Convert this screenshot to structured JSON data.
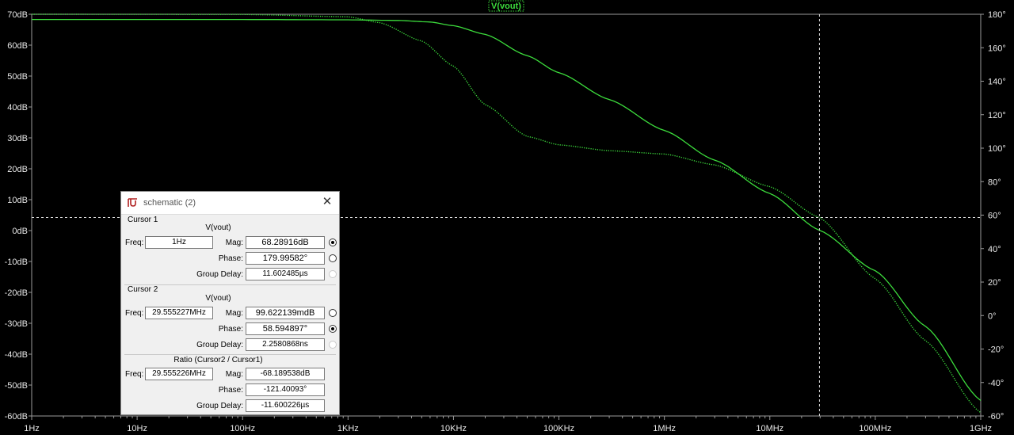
{
  "chart_data": {
    "type": "line",
    "title": "V(vout)",
    "x_scale": "log",
    "xlim": [
      1,
      1000000000
    ],
    "x_ticks": [
      {
        "value": 1,
        "label": "1Hz"
      },
      {
        "value": 10,
        "label": "10Hz"
      },
      {
        "value": 100,
        "label": "100Hz"
      },
      {
        "value": 1000,
        "label": "1KHz"
      },
      {
        "value": 10000,
        "label": "10KHz"
      },
      {
        "value": 100000,
        "label": "100KHz"
      },
      {
        "value": 1000000,
        "label": "1MHz"
      },
      {
        "value": 10000000,
        "label": "10MHz"
      },
      {
        "value": 100000000,
        "label": "100MHz"
      },
      {
        "value": 1000000000,
        "label": "1GHz"
      }
    ],
    "ylim_left": [
      -60,
      70
    ],
    "y_ticks_left": [
      {
        "value": 70,
        "label": "70dB"
      },
      {
        "value": 60,
        "label": "60dB"
      },
      {
        "value": 50,
        "label": "50dB"
      },
      {
        "value": 40,
        "label": "40dB"
      },
      {
        "value": 30,
        "label": "30dB"
      },
      {
        "value": 20,
        "label": "20dB"
      },
      {
        "value": 10,
        "label": "10dB"
      },
      {
        "value": 0,
        "label": "0dB"
      },
      {
        "value": -10,
        "label": "-10dB"
      },
      {
        "value": -20,
        "label": "-20dB"
      },
      {
        "value": -30,
        "label": "-30dB"
      },
      {
        "value": -40,
        "label": "-40dB"
      },
      {
        "value": -50,
        "label": "-50dB"
      },
      {
        "value": -60,
        "label": "-60dB"
      }
    ],
    "ylim_right": [
      -60,
      180
    ],
    "y_ticks_right": [
      {
        "value": 180,
        "label": "180°"
      },
      {
        "value": 160,
        "label": "160°"
      },
      {
        "value": 140,
        "label": "140°"
      },
      {
        "value": 120,
        "label": "120°"
      },
      {
        "value": 100,
        "label": "100°"
      },
      {
        "value": 80,
        "label": "80°"
      },
      {
        "value": 60,
        "label": "60°"
      },
      {
        "value": 40,
        "label": "40°"
      },
      {
        "value": 20,
        "label": "20°"
      },
      {
        "value": 0,
        "label": "0°"
      },
      {
        "value": -20,
        "label": "-20°"
      },
      {
        "value": -40,
        "label": "-40°"
      },
      {
        "value": -60,
        "label": "-60°"
      }
    ],
    "grid": false,
    "series": [
      {
        "role": "magnitude",
        "axis": "left",
        "style": "solid",
        "color": "#3cdc3c",
        "points": [
          [
            1,
            68.3
          ],
          [
            100,
            68.3
          ],
          [
            1000,
            68.2
          ],
          [
            3000,
            68.0
          ],
          [
            6000,
            67.5
          ],
          [
            10000,
            66.3
          ],
          [
            20000,
            63.5
          ],
          [
            50000,
            56.6
          ],
          [
            100000,
            51.1
          ],
          [
            300000,
            42.4
          ],
          [
            1000000,
            32.4
          ],
          [
            3000000,
            22.8
          ],
          [
            10000000,
            12.0
          ],
          [
            29555227,
            0.1
          ],
          [
            100000000,
            -13
          ],
          [
            300000000,
            -31
          ],
          [
            1000000000,
            -55
          ]
        ]
      },
      {
        "role": "phase",
        "axis": "right",
        "style": "dotted",
        "color": "#3cdc3c",
        "points": [
          [
            1,
            180
          ],
          [
            100,
            179.9
          ],
          [
            1000,
            178.5
          ],
          [
            2000,
            175
          ],
          [
            5000,
            164
          ],
          [
            10000,
            149
          ],
          [
            20000,
            126
          ],
          [
            50000,
            107
          ],
          [
            100000,
            102
          ],
          [
            300000,
            98.5
          ],
          [
            1000000,
            96.5
          ],
          [
            3000000,
            90
          ],
          [
            10000000,
            77
          ],
          [
            29555227,
            58.6
          ],
          [
            100000000,
            22
          ],
          [
            300000000,
            -15
          ],
          [
            1000000000,
            -58
          ]
        ]
      }
    ],
    "cursor_x": 29555227,
    "cursor_y_right": 58.594897
  },
  "dialog": {
    "title": "schematic (2)",
    "cursor1": {
      "label": "Cursor 1",
      "trace": "V(vout)",
      "freq_label": "Freq:",
      "freq": "1Hz",
      "mag_label": "Mag:",
      "mag": "68.28916dB",
      "phase_label": "Phase:",
      "phase": "179.99582°",
      "gd_label": "Group Delay:",
      "gd": "11.602485µs"
    },
    "cursor2": {
      "label": "Cursor 2",
      "trace": "V(vout)",
      "freq_label": "Freq:",
      "freq": "29.555227MHz",
      "mag_label": "Mag:",
      "mag": "99.622139mdB",
      "phase_label": "Phase:",
      "phase": "58.594897°",
      "gd_label": "Group Delay:",
      "gd": "2.2580868ns"
    },
    "ratio": {
      "label": "Ratio (Cursor2 / Cursor1)",
      "freq_label": "Freq:",
      "freq": "29.555226MHz",
      "mag_label": "Mag:",
      "mag": "-68.189538dB",
      "phase_label": "Phase:",
      "phase": "-121.40093°",
      "gd_label": "Group Delay:",
      "gd": "-11.600226µs"
    },
    "close_icon": "close-icon",
    "app_icon": "ltspice-icon"
  }
}
